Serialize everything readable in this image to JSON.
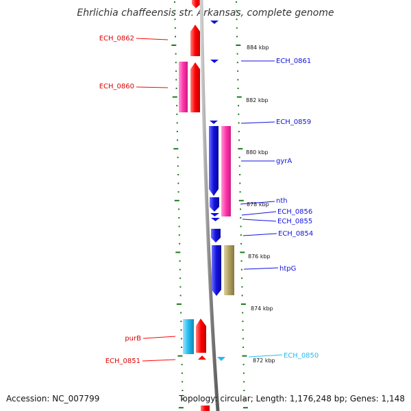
{
  "title": "Ehrlichia chaffeensis str. Arkansas, complete genome",
  "footer": {
    "accession": "Accession: NC_007799",
    "summary": "Topology: circular; Length: 1,176,248 bp; Genes: 1,148"
  },
  "scale_labels": [
    "884 kbp",
    "882 kbp",
    "880 kbp",
    "878 kbp",
    "876 kbp",
    "874 kbp",
    "872 kbp"
  ],
  "colors": {
    "forward": "#ff0000",
    "reverse": "#1111dd",
    "pink": "#ff33aa",
    "cyan": "#22bbee",
    "olive": "#b0a060",
    "tick": "#1a7a1a",
    "backbone": "#888888"
  },
  "gene_labels": {
    "ech_0862": "ECH_0862",
    "ech_0860": "ECH_0860",
    "ech_0861": "ECH_0861",
    "ech_0859": "ECH_0859",
    "gyra": "gyrA",
    "nth": "nth",
    "ech_0856": "ECH_0856",
    "ech_0855": "ECH_0855",
    "ech_0854": "ECH_0854",
    "htpg": "htpG",
    "purb": "purB",
    "ech_0851": "ECH_0851",
    "ech_0850": "ECH_0850"
  }
}
